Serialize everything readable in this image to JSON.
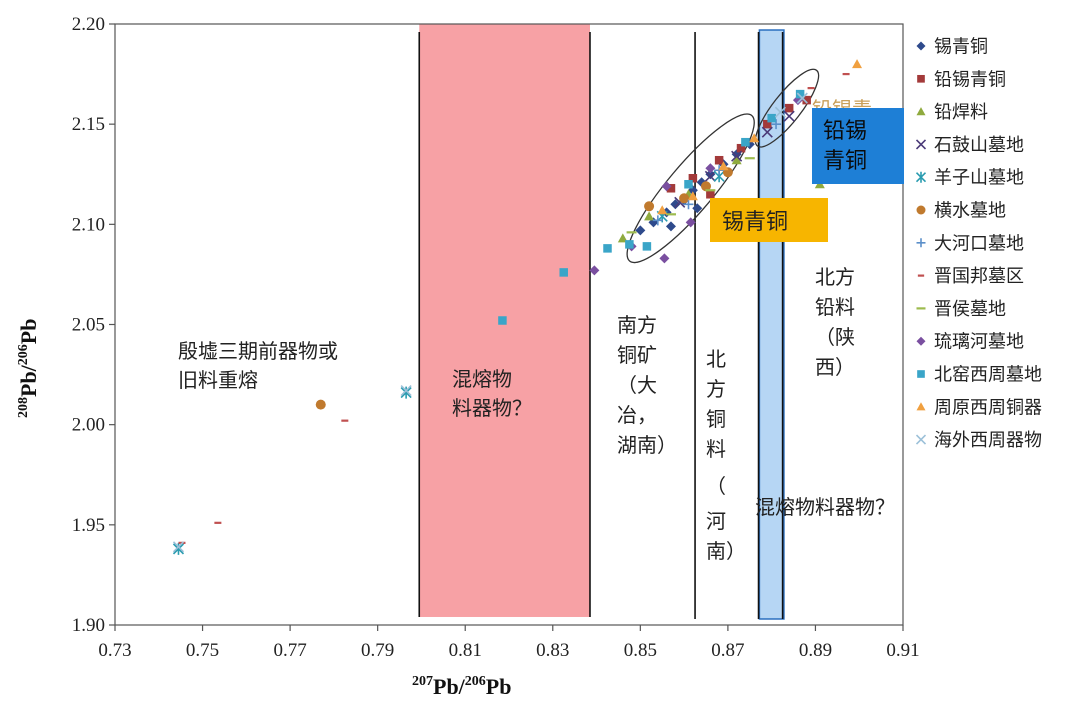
{
  "chart_data": {
    "type": "scatter",
    "xlabel_base": "Pb/",
    "xlabel_sup1": "207",
    "xlabel_sup2": "206",
    "xlabel_tail": "Pb",
    "ylabel_base": "Pb/",
    "ylabel_sup1": "208",
    "ylabel_sup2": "206",
    "ylabel_tail": "Pb",
    "xlim": [
      0.73,
      0.91
    ],
    "ylim": [
      1.9,
      2.2
    ],
    "x_ticks": [
      "0.73",
      "0.75",
      "0.77",
      "0.79",
      "0.81",
      "0.83",
      "0.85",
      "0.87",
      "0.89",
      "0.91"
    ],
    "y_ticks": [
      "1.90",
      "1.95",
      "2.00",
      "2.05",
      "2.10",
      "2.15",
      "2.20"
    ],
    "grid": false,
    "legend_position": "right",
    "series": [
      {
        "name": "锡青铜",
        "color": "#2E4A8C",
        "marker": "diamond",
        "points": [
          [
            0.85,
            2.097
          ],
          [
            0.853,
            2.101
          ],
          [
            0.856,
            2.106
          ],
          [
            0.858,
            2.11
          ],
          [
            0.86,
            2.112
          ],
          [
            0.862,
            2.117
          ],
          [
            0.864,
            2.121
          ],
          [
            0.866,
            2.125
          ],
          [
            0.869,
            2.13
          ],
          [
            0.872,
            2.135
          ],
          [
            0.875,
            2.14
          ],
          [
            0.857,
            2.099
          ],
          [
            0.863,
            2.108
          ]
        ]
      },
      {
        "name": "铅锡青铜",
        "color": "#A33A3A",
        "marker": "square",
        "points": [
          [
            0.857,
            2.118
          ],
          [
            0.862,
            2.123
          ],
          [
            0.868,
            2.132
          ],
          [
            0.873,
            2.138
          ],
          [
            0.879,
            2.15
          ],
          [
            0.884,
            2.158
          ],
          [
            0.888,
            2.162
          ],
          [
            0.866,
            2.115
          ]
        ]
      },
      {
        "name": "铅焊料",
        "color": "#8FAA3E",
        "marker": "triangle",
        "points": [
          [
            0.846,
            2.093
          ],
          [
            0.852,
            2.104
          ],
          [
            0.861,
            2.115
          ],
          [
            0.872,
            2.132
          ],
          [
            0.891,
            2.12
          ]
        ]
      },
      {
        "name": "石鼓山墓地",
        "color": "#4A3A78",
        "marker": "x",
        "points": [
          [
            0.859,
            2.111
          ],
          [
            0.866,
            2.124
          ],
          [
            0.872,
            2.134
          ],
          [
            0.879,
            2.146
          ],
          [
            0.884,
            2.154
          ]
        ]
      },
      {
        "name": "羊子山墓地",
        "color": "#2A9CB0",
        "marker": "star",
        "points": [
          [
            0.7445,
            1.938
          ],
          [
            0.7965,
            2.016
          ],
          [
            0.855,
            2.104
          ],
          [
            0.868,
            2.124
          ]
        ]
      },
      {
        "name": "横水墓地",
        "color": "#C07A2E",
        "marker": "circle",
        "points": [
          [
            0.777,
            2.01
          ],
          [
            0.852,
            2.109
          ],
          [
            0.86,
            2.113
          ],
          [
            0.865,
            2.119
          ],
          [
            0.87,
            2.126
          ]
        ]
      },
      {
        "name": "大河口墓地",
        "color": "#5B8FC9",
        "marker": "plus",
        "points": [
          [
            0.854,
            2.102
          ],
          [
            0.861,
            2.11
          ],
          [
            0.868,
            2.127
          ],
          [
            0.881,
            2.15
          ]
        ]
      },
      {
        "name": "晋国邦墓区",
        "color": "#C05050",
        "marker": "dash",
        "points": [
          [
            0.7453,
            1.941
          ],
          [
            0.7535,
            1.951
          ],
          [
            0.7825,
            2.002
          ],
          [
            0.897,
            2.175
          ],
          [
            0.889,
            2.168
          ]
        ]
      },
      {
        "name": "晋侯墓地",
        "color": "#9DBB4E",
        "marker": "hline",
        "points": [
          [
            0.848,
            2.096
          ],
          [
            0.857,
            2.105
          ],
          [
            0.866,
            2.117
          ],
          [
            0.875,
            2.133
          ]
        ]
      },
      {
        "name": "琉璃河墓地",
        "color": "#7A4FA0",
        "marker": "diamond",
        "points": [
          [
            0.8395,
            2.077
          ],
          [
            0.8555,
            2.083
          ],
          [
            0.848,
            2.089
          ],
          [
            0.8615,
            2.101
          ],
          [
            0.856,
            2.119
          ],
          [
            0.866,
            2.128
          ],
          [
            0.886,
            2.162
          ]
        ]
      },
      {
        "name": "北窑西周墓地",
        "color": "#3AA5C8",
        "marker": "square",
        "points": [
          [
            0.8185,
            2.052
          ],
          [
            0.8325,
            2.076
          ],
          [
            0.8425,
            2.088
          ],
          [
            0.8475,
            2.09
          ],
          [
            0.8515,
            2.089
          ],
          [
            0.861,
            2.12
          ],
          [
            0.88,
            2.153
          ],
          [
            0.8865,
            2.165
          ],
          [
            0.874,
            2.141
          ]
        ]
      },
      {
        "name": "周原西周铜器",
        "color": "#F0A040",
        "marker": "triangle",
        "points": [
          [
            0.8995,
            2.18
          ],
          [
            0.855,
            2.107
          ],
          [
            0.862,
            2.114
          ],
          [
            0.869,
            2.129
          ],
          [
            0.876,
            2.143
          ]
        ]
      },
      {
        "name": "海外西周器物",
        "color": "#9CC0D8",
        "marker": "x",
        "points": [
          [
            0.7965,
            2.017
          ],
          [
            0.7445,
            1.939
          ],
          [
            0.882,
            2.156
          ],
          [
            0.887,
            2.163
          ]
        ]
      }
    ]
  },
  "annotations": {
    "yinxu": [
      "殷墟三期前器物或",
      "旧料重熔"
    ],
    "mix_left": [
      "混熔物",
      "料器物？"
    ],
    "south": [
      "南方",
      "铜矿",
      "（大",
      "冶，",
      "湖南）"
    ],
    "north_copper": [
      "北",
      "方",
      "铜",
      "料",
      "（",
      "河",
      "南）"
    ],
    "mix_right": "混熔物料器物？",
    "north_lead": [
      "北方",
      "铅料",
      "（陕",
      "西）"
    ],
    "tin_bronze_box": "锡青铜",
    "lead_tin_box": [
      "铅锡",
      "青铜"
    ],
    "hidden_label": "铅锡青"
  }
}
